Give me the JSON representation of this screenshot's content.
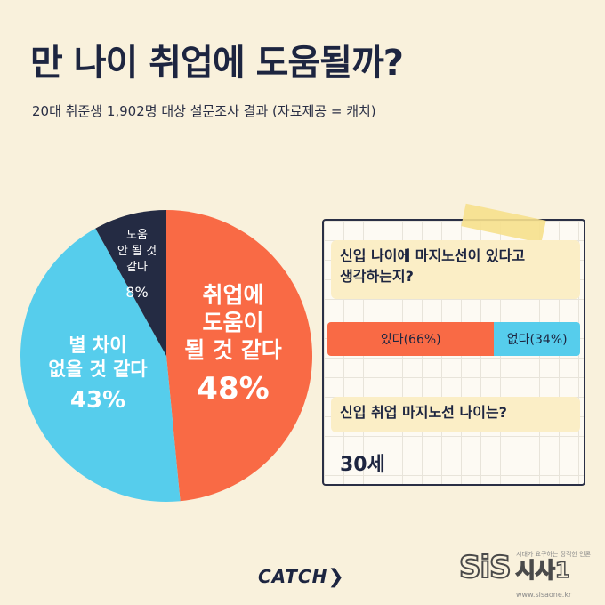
{
  "header": {
    "title": "만 나이 취업에 도움될까?",
    "subtitle": "20대 취준생 1,902명 대상 설문조사 결과 (자료제공 = 캐치)"
  },
  "chart_data": {
    "type": "pie",
    "title": "",
    "slices": [
      {
        "label_lines": [
          "취업에",
          "도움이",
          "될 것 같다"
        ],
        "value": 48,
        "display": "48%",
        "color": "#f96a45"
      },
      {
        "label_lines": [
          "별 차이",
          "없을 것 같다"
        ],
        "value": 43,
        "display": "43%",
        "color": "#56cdec"
      },
      {
        "label_lines": [
          "도움",
          "안 될 것",
          "같다"
        ],
        "value": 8,
        "display": "8%",
        "color": "#242b43"
      }
    ]
  },
  "card": {
    "question1": [
      "신입 나이에  마지노선이 있다고",
      "생각하는지?"
    ],
    "bar": [
      {
        "label": "있다(66%)",
        "value": 66,
        "color": "#f96a45"
      },
      {
        "label": "없다(34%)",
        "value": 34,
        "color": "#56cdec"
      }
    ],
    "question2": "신입 취업 마지노선 나이는?",
    "answer2": "30세"
  },
  "logos": {
    "catch": "CATCH",
    "sis": "SiS",
    "sis_ko": "시사1",
    "sis_tag": "시대가 요구하는 정직한 언론",
    "sis_url": "www.sisaone.kr"
  }
}
